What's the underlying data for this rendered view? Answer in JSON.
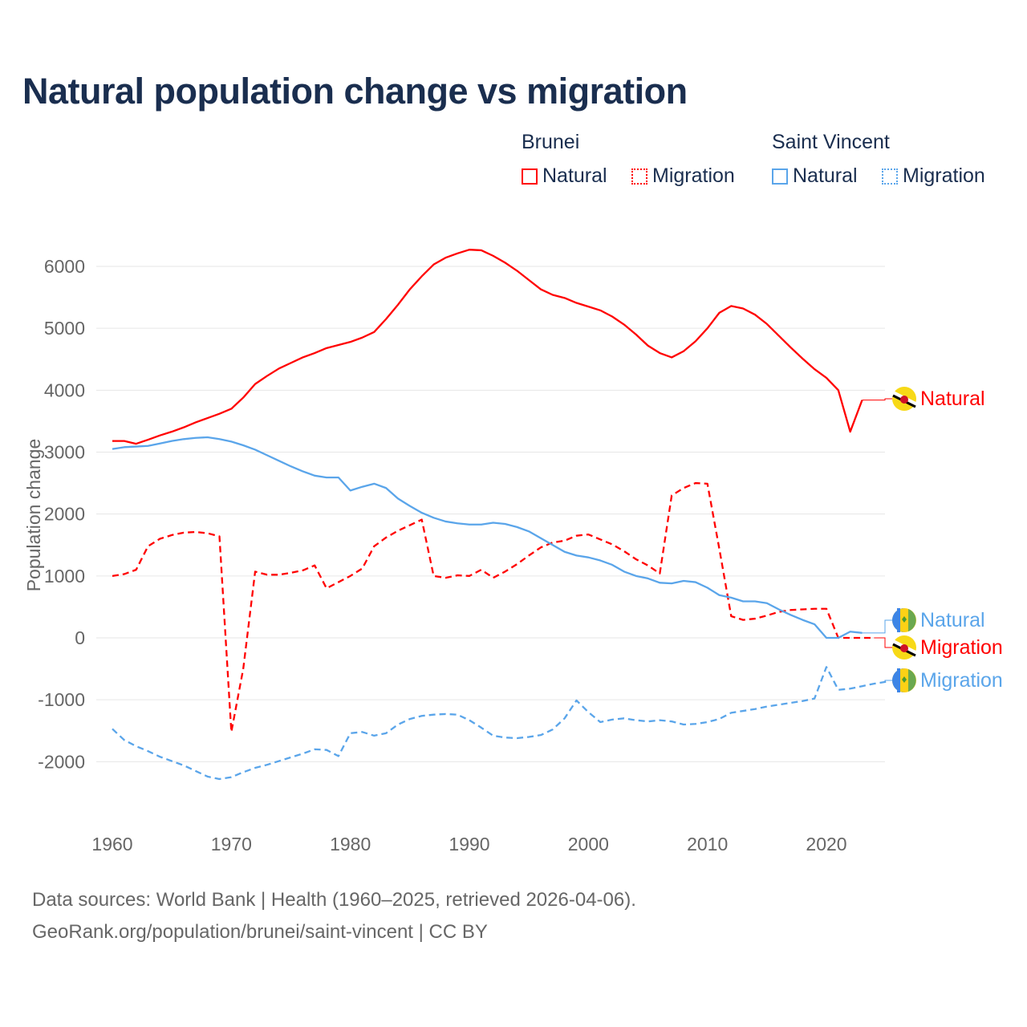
{
  "chart_data": {
    "type": "line",
    "title": "Natural population change vs migration",
    "xlabel": "",
    "ylabel": "Population change",
    "xlim": [
      1960,
      2025
    ],
    "ylim": [
      -2500,
      6500
    ],
    "x_ticks": [
      1960,
      1970,
      1980,
      1990,
      2000,
      2010,
      2020
    ],
    "y_ticks": [
      -2000,
      -1000,
      0,
      1000,
      2000,
      3000,
      4000,
      5000,
      6000
    ],
    "grid": true,
    "legend": {
      "placement": "top-right",
      "groups": [
        {
          "name": "Brunei",
          "items": [
            "Natural",
            "Migration"
          ]
        },
        {
          "name": "Saint Vincent",
          "items": [
            "Natural",
            "Migration"
          ]
        }
      ]
    },
    "series": [
      {
        "country": "Brunei",
        "name": "Natural",
        "color": "#ff0000",
        "dash": false,
        "start": 1960,
        "values": [
          3180,
          3180,
          3135,
          3200,
          3270,
          3330,
          3400,
          3480,
          3550,
          3620,
          3700,
          3880,
          4100,
          4230,
          4350,
          4440,
          4530,
          4600,
          4680,
          4730,
          4780,
          4850,
          4940,
          5150,
          5380,
          5630,
          5840,
          6030,
          6140,
          6210,
          6270,
          6260,
          6170,
          6060,
          5930,
          5780,
          5630,
          5540,
          5490,
          5410,
          5350,
          5290,
          5190,
          5060,
          4900,
          4720,
          4600,
          4530,
          4630,
          4790,
          5000,
          5250,
          5360,
          5320,
          5220,
          5070,
          4880,
          4690,
          4510,
          4340,
          4200,
          4000,
          3330,
          3840
        ]
      },
      {
        "country": "Brunei",
        "name": "Migration",
        "color": "#ff0000",
        "dash": true,
        "start": 1960,
        "values": [
          1000,
          1030,
          1100,
          1480,
          1600,
          1660,
          1700,
          1710,
          1690,
          1640,
          -1520,
          -500,
          1070,
          1020,
          1020,
          1050,
          1090,
          1170,
          800,
          900,
          1000,
          1120,
          1480,
          1620,
          1730,
          1820,
          1910,
          1000,
          970,
          1010,
          1000,
          1100,
          970,
          1070,
          1190,
          1330,
          1460,
          1540,
          1570,
          1650,
          1670,
          1590,
          1510,
          1400,
          1270,
          1170,
          1040,
          2300,
          2420,
          2500,
          2490,
          1440,
          350,
          290,
          310,
          360,
          420,
          450,
          460,
          470,
          470,
          0,
          0,
          0,
          0
        ]
      },
      {
        "country": "Saint Vincent",
        "name": "Natural",
        "color": "#5aa5ea",
        "dash": false,
        "start": 1960,
        "values": [
          3050,
          3080,
          3090,
          3100,
          3140,
          3180,
          3210,
          3230,
          3240,
          3210,
          3170,
          3110,
          3040,
          2950,
          2860,
          2770,
          2690,
          2620,
          2590,
          2590,
          2380,
          2440,
          2490,
          2420,
          2250,
          2130,
          2020,
          1940,
          1880,
          1850,
          1830,
          1830,
          1860,
          1840,
          1790,
          1720,
          1610,
          1500,
          1390,
          1330,
          1300,
          1250,
          1180,
          1070,
          1000,
          960,
          890,
          880,
          920,
          900,
          810,
          690,
          650,
          590,
          590,
          560,
          460,
          370,
          290,
          220,
          0,
          0,
          100,
          80
        ]
      },
      {
        "country": "Saint Vincent",
        "name": "Migration",
        "color": "#5aa5ea",
        "dash": true,
        "start": 1960,
        "values": [
          -1470,
          -1650,
          -1750,
          -1830,
          -1920,
          -1990,
          -2060,
          -2150,
          -2240,
          -2280,
          -2250,
          -2170,
          -2100,
          -2050,
          -1990,
          -1930,
          -1870,
          -1800,
          -1810,
          -1910,
          -1540,
          -1520,
          -1580,
          -1540,
          -1400,
          -1310,
          -1260,
          -1240,
          -1230,
          -1240,
          -1330,
          -1450,
          -1580,
          -1610,
          -1620,
          -1600,
          -1570,
          -1480,
          -1300,
          -1010,
          -1200,
          -1360,
          -1320,
          -1300,
          -1330,
          -1350,
          -1330,
          -1350,
          -1400,
          -1390,
          -1360,
          -1310,
          -1210,
          -1180,
          -1150,
          -1110,
          -1080,
          -1050,
          -1020,
          -980,
          -470,
          -840,
          -820,
          -780,
          -740,
          -710
        ]
      }
    ]
  },
  "legend": {
    "brunei": "Brunei",
    "saint_vincent": "Saint Vincent",
    "natural": "Natural",
    "migration": "Migration"
  },
  "source_line1": "Data sources: World Bank | Health (1960–2025, retrieved 2026-04-06).",
  "source_line2": "GeoRank.org/population/brunei/saint-vincent | CC BY"
}
